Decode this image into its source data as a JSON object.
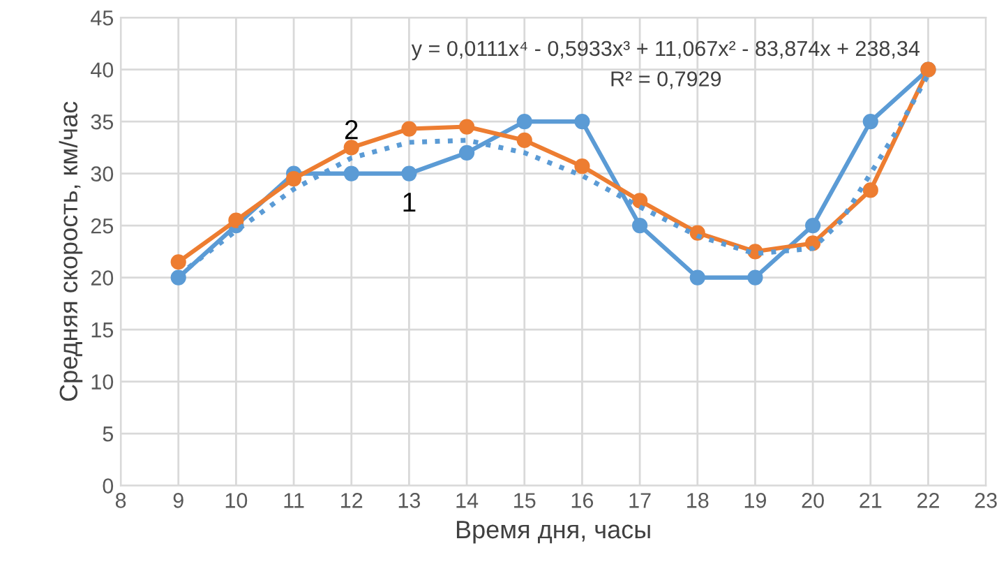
{
  "chart_data": {
    "type": "line",
    "xlabel": "Время дня, часы",
    "ylabel": "Средняя скорость, км/час",
    "x": [
      9,
      10,
      11,
      12,
      13,
      14,
      15,
      16,
      17,
      18,
      19,
      20,
      21,
      22
    ],
    "xlim": [
      8,
      23
    ],
    "xticks": [
      8,
      9,
      10,
      11,
      12,
      13,
      14,
      15,
      16,
      17,
      18,
      19,
      20,
      21,
      22,
      23
    ],
    "ylim": [
      0,
      45
    ],
    "yticks": [
      0,
      5,
      10,
      15,
      20,
      25,
      30,
      35,
      40,
      45
    ],
    "grid": true,
    "marker": "circle",
    "line_style": "solid",
    "series": [
      {
        "color": "#5b9bd5",
        "values": [
          20,
          25,
          30,
          30,
          30,
          32,
          35,
          35,
          25,
          20,
          20,
          25,
          35,
          40
        ]
      },
      {
        "color": "#ed7d31",
        "values": [
          21.5,
          25.5,
          29.5,
          32.5,
          34.3,
          34.5,
          33.2,
          30.7,
          27.4,
          24.3,
          22.5,
          23.3,
          28.4,
          40
        ]
      },
      {
        "type": "line",
        "marker": "none",
        "line_style": "dotted",
        "color": "#5b9bd5",
        "x": [
          9,
          10,
          11,
          12,
          13,
          14,
          15,
          16,
          17,
          18,
          19,
          20,
          20.5,
          21,
          21.5,
          22
        ],
        "values": [
          20.2,
          24.5,
          28.5,
          31.5,
          33,
          33.2,
          32,
          29.8,
          26.8,
          24,
          22.3,
          22.8,
          25.5,
          30,
          34.5,
          39.5
        ]
      }
    ],
    "annotations": [
      {
        "text": "1",
        "x": 13,
        "y": 30
      },
      {
        "text": "2",
        "x": 12,
        "y": 32.5
      },
      "y = 0,0111x⁴ - 0,5933x³ + 11,067x² - 83,874x + 238,34",
      "R² = 0,7929"
    ]
  }
}
